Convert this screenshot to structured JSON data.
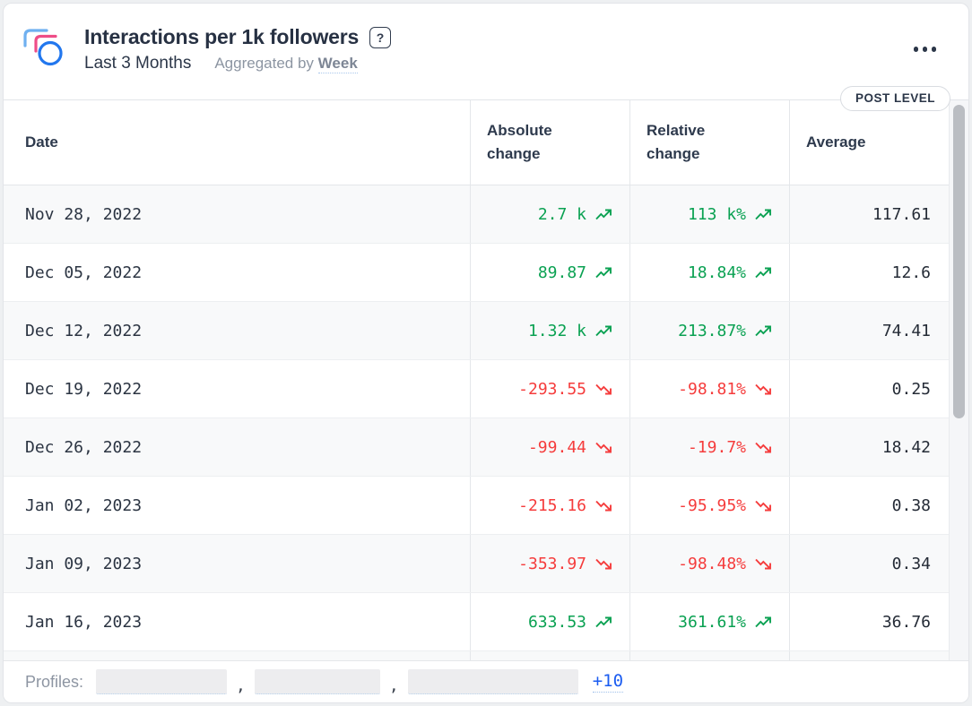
{
  "header": {
    "title": "Interactions per 1k followers",
    "help_icon": "?",
    "date_range": "Last 3 Months",
    "aggregation_prefix": "Aggregated by",
    "aggregation_value": "Week"
  },
  "badge": {
    "label": "POST LEVEL"
  },
  "table": {
    "columns": [
      "Date",
      "Absolute change",
      "Relative change",
      "Average"
    ],
    "rows": [
      {
        "date": "Nov 28, 2022",
        "absolute": "2.7 k",
        "relative": "113 k%",
        "trend": "up",
        "average": "117.61"
      },
      {
        "date": "Dec 05, 2022",
        "absolute": "89.87",
        "relative": "18.84%",
        "trend": "up",
        "average": "12.6"
      },
      {
        "date": "Dec 12, 2022",
        "absolute": "1.32 k",
        "relative": "213.87%",
        "trend": "up",
        "average": "74.41"
      },
      {
        "date": "Dec 19, 2022",
        "absolute": "-293.55",
        "relative": "-98.81%",
        "trend": "down",
        "average": "0.25"
      },
      {
        "date": "Dec 26, 2022",
        "absolute": "-99.44",
        "relative": "-19.7%",
        "trend": "down",
        "average": "18.42"
      },
      {
        "date": "Jan 02, 2023",
        "absolute": "-215.16",
        "relative": "-95.95%",
        "trend": "down",
        "average": "0.38"
      },
      {
        "date": "Jan 09, 2023",
        "absolute": "-353.97",
        "relative": "-98.48%",
        "trend": "down",
        "average": "0.34"
      },
      {
        "date": "Jan 16, 2023",
        "absolute": "633.53",
        "relative": "361.61%",
        "trend": "up",
        "average": "36.76"
      }
    ]
  },
  "footer": {
    "label": "Profiles:",
    "redacted_profile_count": 3,
    "separator": ",",
    "more_label": "+10"
  },
  "colors": {
    "positive": "#0aa152",
    "negative": "#f53c3c",
    "link": "#1b5cf0",
    "navy": "#2b3648",
    "logo_lightblue": "#6fb0f0",
    "logo_pink": "#ee4d87",
    "logo_blue": "#2277ee"
  }
}
